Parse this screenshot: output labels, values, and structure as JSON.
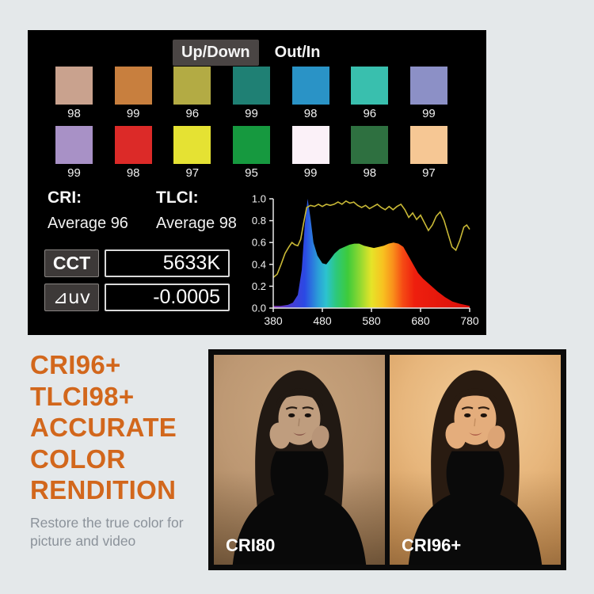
{
  "panel": {
    "tabs": [
      {
        "label": "Up/Down",
        "active": true
      },
      {
        "label": "Out/In",
        "active": false
      }
    ],
    "swatch_rows": [
      {
        "swatches": [
          {
            "color": "#c9a28e",
            "value": "98"
          },
          {
            "color": "#c87f3e",
            "value": "99"
          },
          {
            "color": "#b3ab44",
            "value": "96"
          },
          {
            "color": "#1f8074",
            "value": "99"
          },
          {
            "color": "#2a93c6",
            "value": "98"
          },
          {
            "color": "#39bfae",
            "value": "96"
          },
          {
            "color": "#8c90c6",
            "value": "99"
          }
        ]
      },
      {
        "swatches": [
          {
            "color": "#a891c6",
            "value": "99"
          },
          {
            "color": "#dc2a28",
            "value": "98"
          },
          {
            "color": "#e5e233",
            "value": "97"
          },
          {
            "color": "#16993f",
            "value": "95"
          },
          {
            "color": "#fbf1f8",
            "value": "99"
          },
          {
            "color": "#2e7040",
            "value": "98"
          },
          {
            "color": "#f6c794",
            "value": "97"
          }
        ]
      }
    ],
    "cri": {
      "label": "CRI:",
      "value": "Average 96"
    },
    "tlci": {
      "label": "TLCI:",
      "value": "Average 98"
    },
    "cct": {
      "label": "CCT",
      "value": "5633K"
    },
    "duv": {
      "label": "⊿uv",
      "value": "-0.0005"
    }
  },
  "chart_data": {
    "type": "area+line",
    "title": "",
    "xlabel": "",
    "ylabel": "",
    "xlim": [
      380,
      780
    ],
    "ylim": [
      0,
      1
    ],
    "xticks": [
      "380",
      "480",
      "580",
      "680",
      "780"
    ],
    "yticks": [
      "0.0",
      "0.2",
      "0.4",
      "0.6",
      "0.8",
      "1.0"
    ],
    "grid": false,
    "legend": false,
    "series": [
      {
        "name": "spectral power distribution",
        "type": "area",
        "fill": "spectrum-gradient",
        "x": [
          380,
          395,
          410,
          420,
          430,
          438,
          444,
          450,
          456,
          462,
          470,
          480,
          488,
          495,
          505,
          515,
          525,
          535,
          545,
          555,
          565,
          575,
          585,
          595,
          605,
          615,
          625,
          635,
          645,
          655,
          665,
          675,
          685,
          695,
          705,
          715,
          730,
          745,
          760,
          780
        ],
        "y": [
          0.02,
          0.02,
          0.03,
          0.05,
          0.12,
          0.35,
          0.75,
          1.0,
          0.82,
          0.6,
          0.48,
          0.41,
          0.4,
          0.44,
          0.5,
          0.54,
          0.56,
          0.58,
          0.59,
          0.59,
          0.57,
          0.56,
          0.55,
          0.56,
          0.57,
          0.59,
          0.6,
          0.59,
          0.56,
          0.48,
          0.4,
          0.32,
          0.27,
          0.23,
          0.19,
          0.15,
          0.1,
          0.06,
          0.04,
          0.02
        ]
      },
      {
        "name": "rendering index curve",
        "type": "line",
        "color": "#c9b936",
        "x": [
          380,
          388,
          396,
          404,
          412,
          418,
          424,
          430,
          436,
          442,
          448,
          456,
          464,
          472,
          480,
          488,
          496,
          504,
          512,
          520,
          528,
          536,
          544,
          552,
          560,
          568,
          576,
          584,
          592,
          600,
          608,
          616,
          624,
          632,
          640,
          648,
          656,
          664,
          672,
          680,
          688,
          696,
          704,
          712,
          720,
          728,
          736,
          744,
          752,
          760,
          768,
          774,
          780
        ],
        "y": [
          0.28,
          0.31,
          0.4,
          0.5,
          0.56,
          0.6,
          0.58,
          0.57,
          0.63,
          0.78,
          0.92,
          0.94,
          0.93,
          0.95,
          0.93,
          0.95,
          0.94,
          0.95,
          0.97,
          0.95,
          0.98,
          0.96,
          0.97,
          0.94,
          0.92,
          0.94,
          0.91,
          0.93,
          0.95,
          0.92,
          0.9,
          0.93,
          0.9,
          0.93,
          0.95,
          0.9,
          0.83,
          0.87,
          0.81,
          0.85,
          0.78,
          0.71,
          0.76,
          0.84,
          0.88,
          0.8,
          0.68,
          0.56,
          0.53,
          0.62,
          0.74,
          0.76,
          0.72
        ]
      }
    ]
  },
  "promo": {
    "headline_lines": [
      "CRI96+",
      "TLCI98+",
      "ACCURATE",
      "COLOR",
      "RENDITION"
    ],
    "subtitle_lines": [
      "Restore the true color for",
      "picture and video"
    ]
  },
  "comparison": {
    "photos": [
      {
        "label": "CRI80"
      },
      {
        "label": "CRI96+"
      }
    ]
  },
  "colors": {
    "page_bg": "#e4e8ea",
    "panel_bg": "#000000",
    "tab_active_bg": "#4a4544",
    "headline_orange": "#d2671c",
    "subtitle_gray": "#8b929a",
    "cri_line_yellow": "#c9b936"
  }
}
